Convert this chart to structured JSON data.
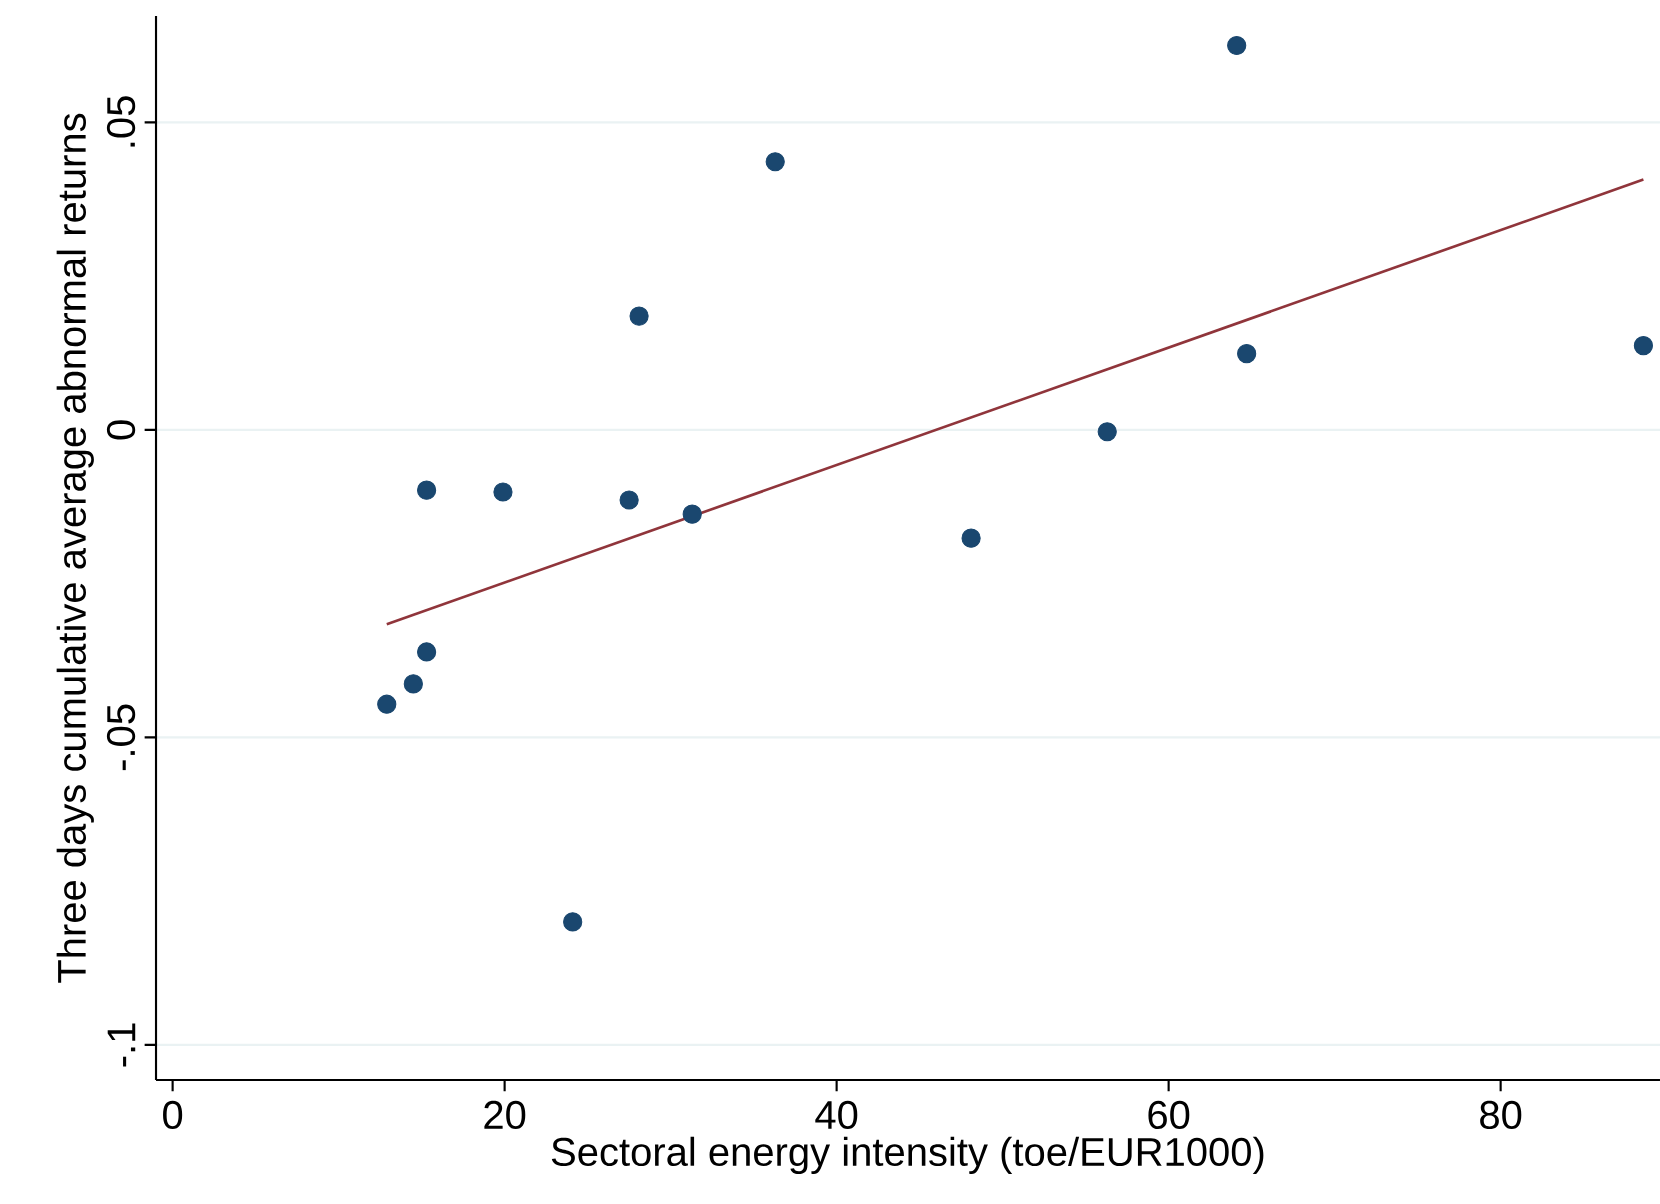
{
  "chart_data": {
    "type": "scatter",
    "xlabel": "Sectoral energy intensity (toe/EUR1000)",
    "ylabel": "Three days cumulative average abnormal returns",
    "xlim": [
      -1,
      89.6
    ],
    "ylim": [
      -0.1057,
      0.0673
    ],
    "xticks": [
      0,
      20,
      40,
      60,
      80
    ],
    "yticks": [
      {
        "value": -0.1,
        "label": "-.1"
      },
      {
        "value": -0.05,
        "label": "-.05"
      },
      {
        "value": 0,
        "label": "0"
      },
      {
        "value": 0.05,
        "label": ".05"
      }
    ],
    "grid": "y",
    "series": [
      {
        "marker": "circle",
        "color": "#1a476f",
        "x": [
          12.9,
          14.5,
          15.3,
          15.3,
          19.9,
          24.1,
          27.5,
          28.1,
          31.3,
          36.3,
          48.1,
          56.3,
          64.1,
          64.7,
          88.6
        ],
        "values": [
          -0.0446,
          -0.0413,
          -0.0361,
          -0.0098,
          -0.0101,
          -0.08,
          -0.0114,
          0.0185,
          -0.0137,
          0.0436,
          -0.0176,
          -0.0003,
          0.0625,
          0.0124,
          0.0137
        ]
      },
      {
        "type": "line",
        "marker": "none",
        "line_style": "solid",
        "color": "#90353b",
        "x": [
          12.9,
          88.6
        ],
        "values": [
          -0.0316,
          0.0407
        ]
      }
    ]
  }
}
